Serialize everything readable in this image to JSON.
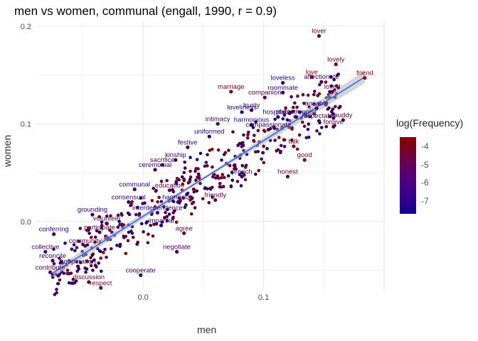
{
  "chart_data": {
    "type": "scatter",
    "title": "men vs women, communal (engall, 1990, r = 0.9)",
    "xlabel": "men",
    "ylabel": "women",
    "xlim": [
      -0.088,
      0.2
    ],
    "ylim": [
      -0.07,
      0.205
    ],
    "x_ticks": [
      {
        "value": 0.0,
        "label": "0.0"
      },
      {
        "value": 0.1,
        "label": "0.1"
      }
    ],
    "y_ticks": [
      {
        "value": 0.0,
        "label": "0.0"
      },
      {
        "value": 0.1,
        "label": "0.1"
      },
      {
        "value": 0.2,
        "label": "0.2"
      }
    ],
    "grid": true,
    "trend_line": {
      "x0": -0.075,
      "y0": -0.053,
      "x1": 0.184,
      "y1": 0.148,
      "band": true
    },
    "color_legend": {
      "title": "log(Frequency)",
      "ticks": [
        -4,
        -5,
        -6,
        -7
      ],
      "range": [
        -7.7,
        -3.5
      ],
      "low_color": "#12008c",
      "high_color": "#8c0000",
      "placement": "right"
    },
    "labeled_points": [
      {
        "word": "lover",
        "x": 0.146,
        "y": 0.19,
        "logf": -5.0
      },
      {
        "word": "lovely",
        "x": 0.16,
        "y": 0.161,
        "logf": -4.6
      },
      {
        "word": "friend",
        "x": 0.184,
        "y": 0.147,
        "logf": -3.7
      },
      {
        "word": "love",
        "x": 0.14,
        "y": 0.148,
        "logf": -3.9
      },
      {
        "word": "affectionate",
        "x": 0.148,
        "y": 0.143,
        "logf": -6.2
      },
      {
        "word": "loveless",
        "x": 0.116,
        "y": 0.142,
        "logf": -7.3
      },
      {
        "word": "loved",
        "x": 0.157,
        "y": 0.133,
        "logf": -4.9
      },
      {
        "word": "roommate",
        "x": 0.116,
        "y": 0.132,
        "logf": -6.8
      },
      {
        "word": "companion",
        "x": 0.101,
        "y": 0.127,
        "logf": -5.6
      },
      {
        "word": "marriage",
        "x": 0.073,
        "y": 0.133,
        "logf": -4.3
      },
      {
        "word": "amiable",
        "x": 0.144,
        "y": 0.116,
        "logf": -6.6
      },
      {
        "word": "loveliness",
        "x": 0.082,
        "y": 0.112,
        "logf": -7.2
      },
      {
        "word": "trusty",
        "x": 0.09,
        "y": 0.114,
        "logf": -6.7
      },
      {
        "word": "hospitable",
        "x": 0.112,
        "y": 0.107,
        "logf": -6.5
      },
      {
        "word": "respectable",
        "x": 0.146,
        "y": 0.103,
        "logf": -5.7
      },
      {
        "word": "buddy",
        "x": 0.166,
        "y": 0.104,
        "logf": -5.4
      },
      {
        "word": "philanthropist",
        "x": 0.127,
        "y": 0.107,
        "logf": -6.9
      },
      {
        "word": "intimacy",
        "x": 0.062,
        "y": 0.1,
        "logf": -6.0
      },
      {
        "word": "forgive",
        "x": 0.158,
        "y": 0.097,
        "logf": -5.3
      },
      {
        "word": "compassionate",
        "x": 0.104,
        "y": 0.094,
        "logf": -6.4
      },
      {
        "word": "harmonious",
        "x": 0.09,
        "y": 0.099,
        "logf": -6.8
      },
      {
        "word": "uniformed",
        "x": 0.055,
        "y": 0.087,
        "logf": -6.9
      },
      {
        "word": "festive",
        "x": 0.037,
        "y": 0.076,
        "logf": -6.1
      },
      {
        "word": "talk",
        "x": 0.125,
        "y": 0.077,
        "logf": -4.2
      },
      {
        "word": "kinship",
        "x": 0.027,
        "y": 0.063,
        "logf": -6.5
      },
      {
        "word": "good",
        "x": 0.134,
        "y": 0.063,
        "logf": -3.8
      },
      {
        "word": "honest",
        "x": 0.12,
        "y": 0.046,
        "logf": -4.8
      },
      {
        "word": "ceremonial",
        "x": 0.01,
        "y": 0.053,
        "logf": -6.6
      },
      {
        "word": "sacrifice",
        "x": 0.016,
        "y": 0.058,
        "logf": -5.6
      },
      {
        "word": "education",
        "x": 0.022,
        "y": 0.032,
        "logf": -5.0
      },
      {
        "word": "communal",
        "x": -0.007,
        "y": 0.033,
        "logf": -6.9
      },
      {
        "word": "preach",
        "x": 0.082,
        "y": 0.046,
        "logf": -6.0
      },
      {
        "word": "consensual",
        "x": -0.012,
        "y": 0.02,
        "logf": -7.1
      },
      {
        "word": "grounding",
        "x": -0.042,
        "y": 0.007,
        "logf": -6.8
      },
      {
        "word": "friendly",
        "x": 0.06,
        "y": 0.022,
        "logf": -5.3
      },
      {
        "word": "harmonize",
        "x": 0.029,
        "y": 0.02,
        "logf": -7.4
      },
      {
        "word": "volunteer",
        "x": -0.03,
        "y": -0.002,
        "logf": -5.7
      },
      {
        "word": "participate",
        "x": -0.036,
        "y": -0.011,
        "logf": -5.9
      },
      {
        "word": "impartial",
        "x": 0.015,
        "y": -0.004,
        "logf": -6.9
      },
      {
        "word": "agree",
        "x": 0.034,
        "y": -0.012,
        "logf": -4.9
      },
      {
        "word": "negotiate",
        "x": 0.028,
        "y": -0.031,
        "logf": -5.9
      },
      {
        "word": "conferring",
        "x": -0.074,
        "y": -0.013,
        "logf": -7.0
      },
      {
        "word": "cooperate",
        "x": -0.002,
        "y": -0.055,
        "logf": -6.2
      },
      {
        "word": "collective",
        "x": -0.081,
        "y": -0.031,
        "logf": -6.0
      },
      {
        "word": "discussion",
        "x": -0.045,
        "y": -0.062,
        "logf": -5.2
      },
      {
        "word": "respect",
        "x": -0.035,
        "y": -0.068,
        "logf": -4.7
      },
      {
        "word": "contribute",
        "x": -0.077,
        "y": -0.052,
        "logf": -5.6
      },
      {
        "word": "cooperation",
        "x": -0.054,
        "y": -0.046,
        "logf": -6.4
      },
      {
        "word": "interdependence",
        "x": 0.012,
        "y": 0.009,
        "logf": -6.7
      },
      {
        "word": "community",
        "x": -0.048,
        "y": -0.025,
        "logf": -4.9
      },
      {
        "word": "reconcile",
        "x": -0.075,
        "y": -0.04,
        "logf": -6.8
      }
    ]
  }
}
